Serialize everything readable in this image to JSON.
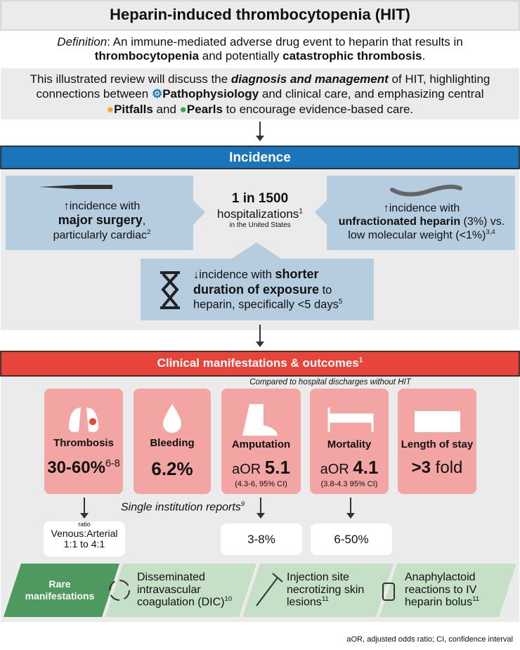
{
  "title": "Heparin-induced thrombocytopenia (HIT)",
  "definition": [
    "Definition",
    ": An immune-mediated adverse drug event to heparin that results in ",
    "thrombocytopenia",
    " and potentially ",
    "catastrophic thrombosis",
    "."
  ],
  "intro": [
    "This illustrated review will discuss the ",
    "diagnosis and management",
    " of HIT, highlighting connections between ",
    "Pathophysiology",
    " and clinical care, and emphasizing central ",
    "Pitfalls",
    " and ",
    "Pearls",
    " to encourage evidence-based care."
  ],
  "incidence": {
    "header": "Incidence",
    "center": [
      "1 in 1500",
      "hospitalizations",
      "1",
      "in the United States"
    ],
    "left": [
      "↑incidence with",
      "major surgery",
      ",",
      "particularly cardiac",
      "2"
    ],
    "right": [
      "↑incidence with",
      "unfractionated heparin",
      " (3%) vs.",
      "low molecular weight (<1%)",
      "3,4"
    ],
    "bottom": [
      "↓incidence with ",
      "shorter duration of exposure",
      " to heparin, specifically <5 days",
      "5"
    ]
  },
  "clinical": {
    "header": [
      "Clinical manifestations & outcomes",
      "1"
    ],
    "note": "Compared to hospital discharges without HIT",
    "cards": [
      {
        "label": "Thrombosis",
        "value": "30-60%",
        "ref": "6-8"
      },
      {
        "label": "Bleeding",
        "value": "6.2%"
      },
      {
        "label": "Amputation",
        "prefix": "aOR",
        "value": "5.1",
        "ci": "(4.3-6, 95% CI)"
      },
      {
        "label": "Mortality",
        "prefix": "aOR",
        "value": "4.1",
        "ci": "(3.8-4.3 95% CI)"
      },
      {
        "label": "Length of stay",
        "value": ">3",
        "suffix": "fold"
      }
    ],
    "single": [
      "Single institution reports",
      "9"
    ],
    "reports": [
      {
        "small": "ratio",
        "lines": [
          "Venous:Arterial",
          "1:1 to 4:1"
        ]
      },
      {
        "value": "3-8%"
      },
      {
        "value": "6-50%"
      }
    ],
    "rare": {
      "label": "Rare manifestations",
      "items": [
        [
          "Disseminated intravascular coagulation (DIC)",
          "10"
        ],
        [
          "Injection site necrotizing skin lesions",
          "11"
        ],
        [
          "Anaphylactoid reactions to IV heparin bolus",
          "11"
        ]
      ]
    }
  },
  "footer": "aOR, adjusted odds ratio; CI, confidence interval"
}
